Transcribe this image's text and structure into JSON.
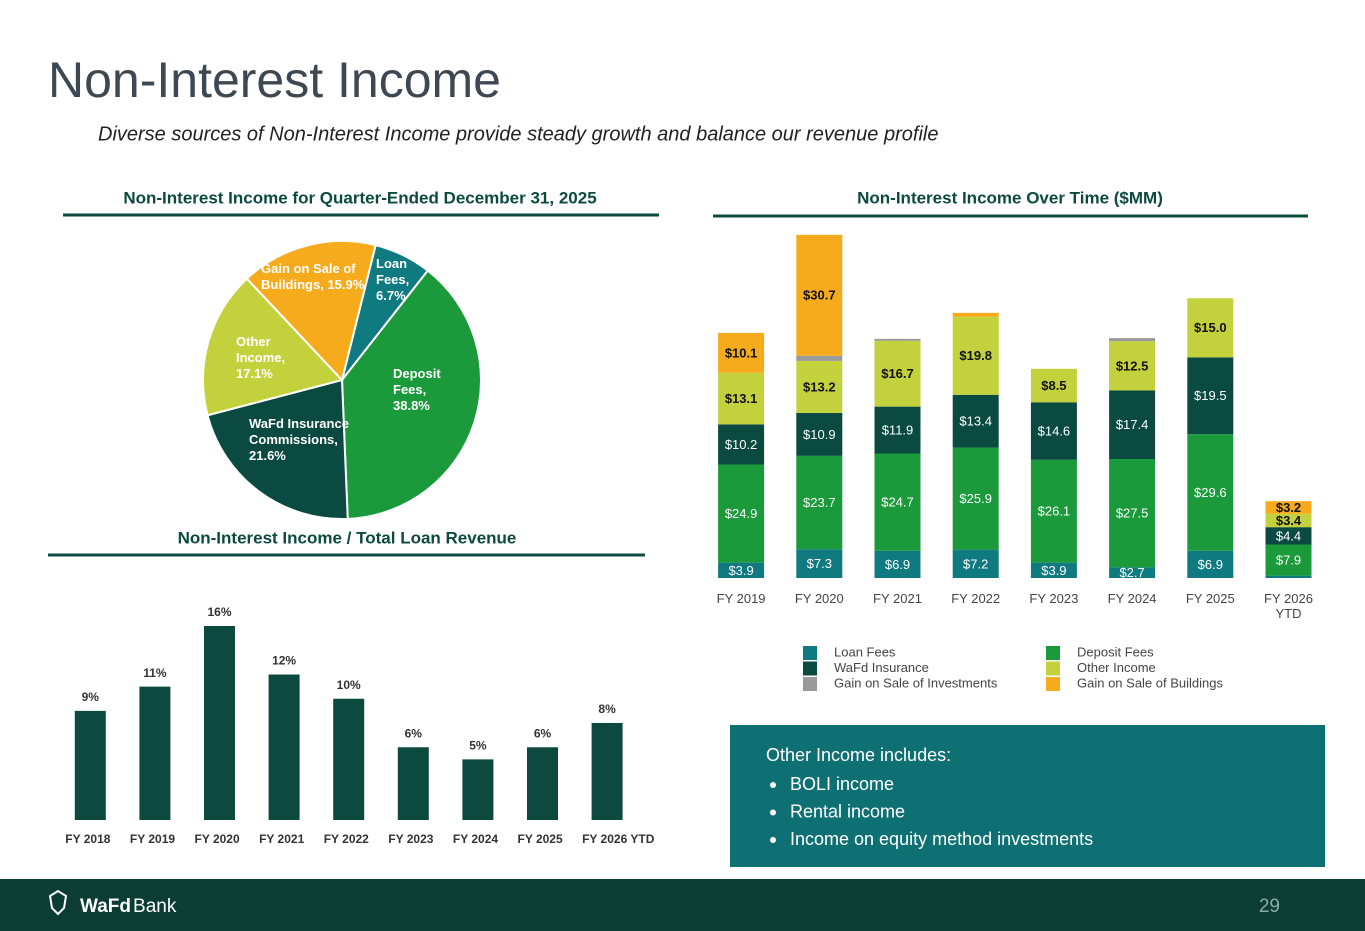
{
  "header": {
    "title": "Non-Interest Income",
    "subtitle": "Diverse sources of Non-Interest Income provide steady growth and balance our revenue profile"
  },
  "chart_data": [
    {
      "type": "pie",
      "title": "Non-Interest Income for Quarter-Ended December 31, 2025",
      "values": [
        6.7,
        38.8,
        21.6,
        17.1,
        15.9
      ],
      "value_labels": [
        "Loan Fees, 6.7%",
        "Deposit Fees, 38.8%",
        "WaFd Insurance Commissions, 21.6%",
        "Other Income, 17.1%",
        "Gain on Sale of Buildings, 15.9%"
      ],
      "colors": [
        "#0f7a80",
        "#1a9a3a",
        "#0a4a40",
        "#c3d23c",
        "#f6ab1c"
      ]
    },
    {
      "type": "bar",
      "title": "Non-Interest Income / Total Loan Revenue",
      "categories": [
        "FY 2018",
        "FY 2019",
        "FY 2020",
        "FY 2021",
        "FY 2022",
        "FY 2023",
        "FY 2024",
        "FY 2025",
        "FY 2026 YTD"
      ],
      "values": [
        9,
        11,
        16,
        12,
        10,
        6,
        5,
        6,
        8
      ],
      "value_labels": [
        "9%",
        "11%",
        "16%",
        "12%",
        "10%",
        "6%",
        "5%",
        "6%",
        "8%"
      ],
      "color": "#0c4a40",
      "ylim": [
        0,
        16
      ]
    },
    {
      "type": "stacked_bar",
      "title": "Non-Interest Income Over Time ($MM)",
      "categories": [
        "FY 2019",
        "FY 2020",
        "FY 2021",
        "FY 2022",
        "FY 2023",
        "FY 2024",
        "FY 2025",
        "FY 2026 YTD"
      ],
      "ylim": [
        0,
        90
      ],
      "legend": "bottom",
      "series": [
        {
          "name": "Loan Fees",
          "color": "#0f7a80",
          "values": [
            3.9,
            7.3,
            6.9,
            7.2,
            3.9,
            2.7,
            6.9,
            0.6
          ],
          "value_labels": [
            "$3.9",
            "$7.3",
            "$6.9",
            "$7.2",
            "$3.9",
            "$2.7",
            "$6.9",
            null
          ]
        },
        {
          "name": "Deposit Fees",
          "color": "#1a9a3a",
          "values": [
            24.9,
            23.7,
            24.7,
            25.9,
            26.1,
            27.5,
            29.6,
            7.9
          ],
          "value_labels": [
            "$24.9",
            "$23.7",
            "$24.7",
            "$25.9",
            "$26.1",
            "$27.5",
            "$29.6",
            "$7.9"
          ]
        },
        {
          "name": "WaFd Insurance",
          "color": "#0a4a40",
          "values": [
            10.2,
            10.9,
            11.9,
            13.4,
            14.6,
            17.4,
            19.5,
            4.4
          ],
          "value_labels": [
            "$10.2",
            "$10.9",
            "$11.9",
            "$13.4",
            "$14.6",
            "$17.4",
            "$19.5",
            "$4.4"
          ]
        },
        {
          "name": "Other Income",
          "color": "#c3d23c",
          "values": [
            13.1,
            13.2,
            16.7,
            19.8,
            8.5,
            12.5,
            15.0,
            3.4
          ],
          "value_labels": [
            "$13.1",
            "$13.2",
            "$16.7",
            "$19.8",
            "$8.5",
            "$12.5",
            "$15.0",
            "$3.4"
          ]
        },
        {
          "name": "Gain on Sale of Investments",
          "color": "#9a9a9a",
          "values": [
            0,
            1.3,
            0.5,
            0,
            0,
            0.8,
            0,
            0
          ],
          "value_labels": [
            null,
            null,
            null,
            null,
            null,
            null,
            null,
            null
          ]
        },
        {
          "name": "Gain on Sale of Buildings",
          "color": "#f6ab1c",
          "values": [
            10.1,
            30.7,
            0,
            1.0,
            0,
            0,
            0,
            3.2
          ],
          "value_labels": [
            "$10.1",
            "$30.7",
            null,
            null,
            null,
            null,
            null,
            "$3.2"
          ]
        }
      ]
    }
  ],
  "callout": {
    "heading": "Other Income includes:",
    "items": [
      "BOLI income",
      "Rental income",
      "Income on equity method investments"
    ]
  },
  "footer": {
    "brand": "WaFd",
    "brand_suffix": "Bank",
    "page": "29"
  }
}
